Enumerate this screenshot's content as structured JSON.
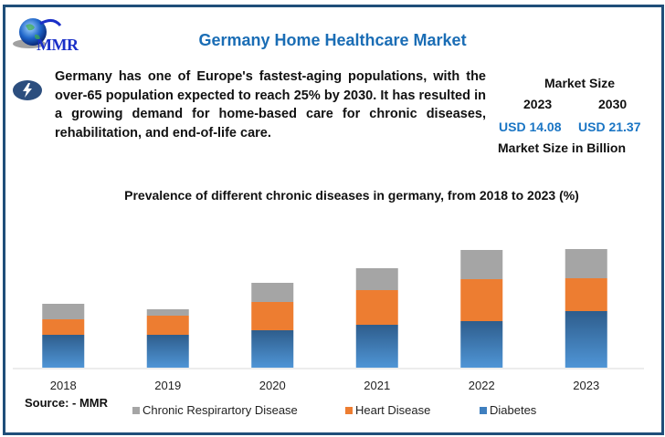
{
  "header": {
    "logo_text": "MMR",
    "title": "Germany Home Healthcare Market"
  },
  "description": {
    "icon": "lightning-bolt-icon",
    "text": "Germany has one of Europe's fastest-aging populations, with the over-65 population expected to reach 25% by 2030. It has resulted in a growing demand for home-based care for chronic diseases, rehabilitation, and end-of-life care."
  },
  "market_size": {
    "title": "Market Size",
    "year_start": "2023",
    "year_end": "2030",
    "value_start": "USD 14.08",
    "value_end": "USD 21.37",
    "footnote": "Market Size in Billion"
  },
  "source": "Source: - MMR",
  "colors": {
    "respiratory": "#a5a5a5",
    "heart": "#ed7d31",
    "diabetes_top": "#2e5d8c",
    "diabetes_bottom": "#4f95d6",
    "border": "#1f4e79",
    "title": "#1a6db5"
  },
  "chart_data": {
    "type": "bar",
    "stacked": true,
    "title": "Prevalence of different chronic diseases in germany, from 2018 to 2023 (%)",
    "xlabel": "",
    "ylabel": "",
    "categories": [
      "2018",
      "2019",
      "2020",
      "2021",
      "2022",
      "2023"
    ],
    "series": [
      {
        "name": "Diabetes",
        "color": "#3f7fbf",
        "values": [
          36,
          36,
          41,
          47,
          51,
          62
        ]
      },
      {
        "name": "Heart Disease",
        "color": "#ed7d31",
        "values": [
          17,
          21,
          31,
          38,
          46,
          36
        ]
      },
      {
        "name": "Chronic Respirartory Disease",
        "color": "#a5a5a5",
        "values": [
          17,
          7,
          21,
          24,
          32,
          32
        ]
      }
    ],
    "legend_order": [
      "Chronic Respirartory Disease",
      "Heart Disease",
      "Diabetes"
    ],
    "legend_position": "bottom",
    "ylim": [
      0,
      130
    ],
    "grid": false,
    "y_axis_visible": false
  }
}
